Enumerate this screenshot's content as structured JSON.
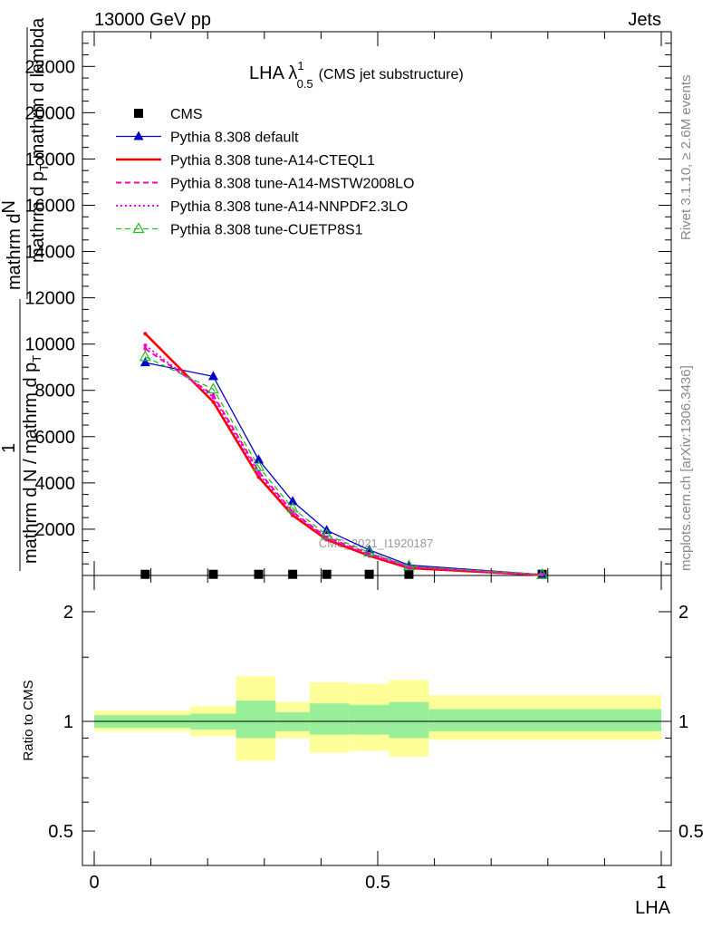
{
  "header": {
    "left": "13000 GeV pp",
    "right": "Jets"
  },
  "title": {
    "main": "LHA λ",
    "sup": "1",
    "sub": "0.5",
    "extra": "(CMS jet substructure)"
  },
  "watermark": "CMS_2021_I1920187",
  "side_text": {
    "rivet": "Rivet 3.1.10, ≥ 2.6M events",
    "mcplots": "mcplots.cern.ch [arXiv:1306.3436]"
  },
  "ylabel_upper": {
    "top1": "mathrm d",
    "top2": "N",
    "bot": "mathrm d p",
    "bot_sub": "T",
    "bot2": " mathrm d lambda",
    "pre": "1",
    "pre_line": "mathrm d N / mathrm d p",
    "pre_sub": "T"
  },
  "ylabel_lower": "Ratio to CMS",
  "xlabel": "LHA",
  "legend": [
    {
      "label": "CMS",
      "color": "#000000",
      "style": "square"
    },
    {
      "label": "Pythia 8.308 default",
      "color": "#0000cc",
      "style": "solid-triangle"
    },
    {
      "label": "Pythia 8.308 tune-A14-CTEQL1",
      "color": "#ff0000",
      "style": "solid-thick"
    },
    {
      "label": "Pythia 8.308 tune-A14-MSTW2008LO",
      "color": "#ff00aa",
      "style": "dashed"
    },
    {
      "label": "Pythia 8.308 tune-A14-NNPDF2.3LO",
      "color": "#ee00ee",
      "style": "dotted"
    },
    {
      "label": "Pythia 8.308 tune-CUETP8S1",
      "color": "#22bb22",
      "style": "dashed-open-triangle"
    }
  ],
  "chart_data": {
    "type": "line",
    "x": [
      0.09,
      0.21,
      0.29,
      0.35,
      0.41,
      0.485,
      0.555,
      0.79
    ],
    "xlim": [
      0,
      1
    ],
    "ylim": [
      0,
      23500
    ],
    "yticks": [
      2000,
      4000,
      6000,
      8000,
      10000,
      12000,
      14000,
      16000,
      18000,
      20000,
      22000
    ],
    "xticks": [
      0,
      0.5,
      1
    ],
    "series": [
      {
        "name": "CMS",
        "values": [
          50,
          50,
          50,
          50,
          50,
          50,
          50,
          50
        ]
      },
      {
        "name": "Pythia 8.308 default",
        "values": [
          9200,
          8600,
          5000,
          3200,
          1950,
          1100,
          450,
          40
        ]
      },
      {
        "name": "Pythia 8.308 tune-A14-CTEQL1",
        "values": [
          10450,
          7500,
          4250,
          2600,
          1550,
          850,
          320,
          20
        ]
      },
      {
        "name": "Pythia 8.308 tune-A14-MSTW2008LO",
        "values": [
          9800,
          7800,
          4500,
          2750,
          1650,
          950,
          380,
          30
        ]
      },
      {
        "name": "Pythia 8.308 tune-A14-NNPDF2.3LO",
        "values": [
          9950,
          7700,
          4400,
          2700,
          1600,
          900,
          360,
          25
        ]
      },
      {
        "name": "Pythia 8.308 tune-CUETP8S1",
        "values": [
          9450,
          8050,
          4700,
          2900,
          1750,
          1000,
          400,
          35
        ]
      }
    ],
    "ratio": {
      "ylabel": "Ratio to CMS",
      "yticks": [
        0.5,
        1,
        2
      ],
      "bands": [
        {
          "x0": 0.0,
          "x1": 0.17,
          "green_lo": 0.96,
          "green_hi": 1.04,
          "yellow_lo": 0.94,
          "yellow_hi": 1.07
        },
        {
          "x0": 0.17,
          "x1": 0.25,
          "green_lo": 0.95,
          "green_hi": 1.05,
          "yellow_lo": 0.91,
          "yellow_hi": 1.1
        },
        {
          "x0": 0.25,
          "x1": 0.32,
          "green_lo": 0.9,
          "green_hi": 1.14,
          "yellow_lo": 0.78,
          "yellow_hi": 1.33
        },
        {
          "x0": 0.32,
          "x1": 0.38,
          "green_lo": 0.94,
          "green_hi": 1.06,
          "yellow_lo": 0.9,
          "yellow_hi": 1.13
        },
        {
          "x0": 0.38,
          "x1": 0.45,
          "green_lo": 0.92,
          "green_hi": 1.12,
          "yellow_lo": 0.82,
          "yellow_hi": 1.28
        },
        {
          "x0": 0.45,
          "x1": 0.52,
          "green_lo": 0.92,
          "green_hi": 1.11,
          "yellow_lo": 0.83,
          "yellow_hi": 1.27
        },
        {
          "x0": 0.52,
          "x1": 0.59,
          "green_lo": 0.9,
          "green_hi": 1.13,
          "yellow_lo": 0.8,
          "yellow_hi": 1.3
        },
        {
          "x0": 0.59,
          "x1": 1.0,
          "green_lo": 0.94,
          "green_hi": 1.08,
          "yellow_lo": 0.89,
          "yellow_hi": 1.18
        }
      ]
    }
  }
}
